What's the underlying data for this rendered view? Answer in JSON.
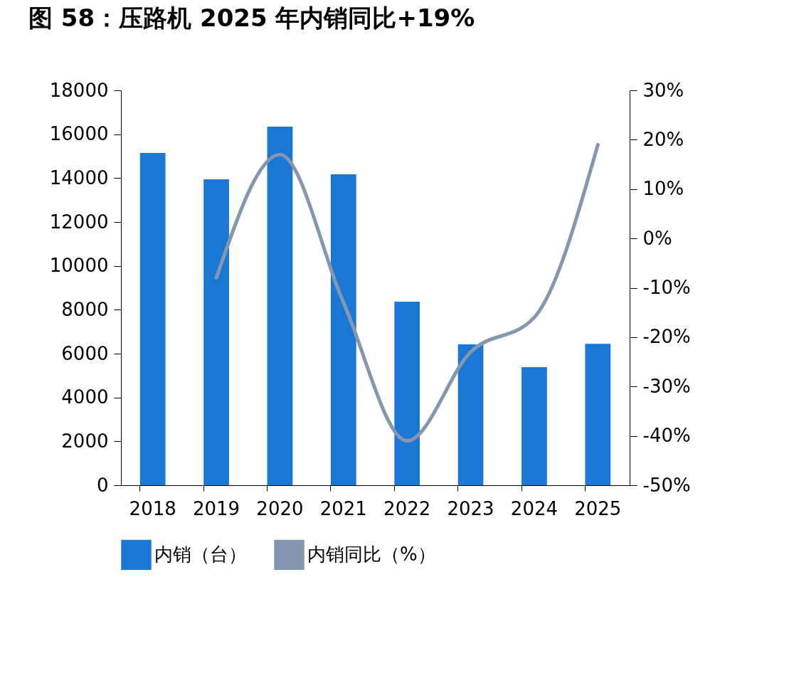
{
  "chart_data": {
    "type": "bar",
    "title": "图 58：压路机 2025 年内销同比+19%",
    "categories": [
      "2018",
      "2019",
      "2020",
      "2021",
      "2022",
      "2023",
      "2024",
      "2025"
    ],
    "series": [
      {
        "name": "内销（台）",
        "color": "#1a78d4",
        "values": [
          15150,
          13950,
          16350,
          14170,
          8370,
          6420,
          5380,
          6450
        ]
      },
      {
        "name": "内销同比（%）",
        "type": "line",
        "axis": "y2",
        "color": "#8497b0",
        "values": [
          null,
          -8,
          17,
          -13,
          -41,
          -23,
          -16,
          19
        ]
      }
    ],
    "ylim": [
      0,
      18000
    ],
    "yticks": [
      0,
      2000,
      4000,
      6000,
      8000,
      10000,
      12000,
      14000,
      16000,
      18000
    ],
    "y2lim": [
      -50,
      30
    ],
    "y2ticks": [
      {
        "value": -50,
        "label": "-50%"
      },
      {
        "value": -40,
        "label": "-40%"
      },
      {
        "value": -30,
        "label": "-30%"
      },
      {
        "value": -20,
        "label": "-20%"
      },
      {
        "value": -10,
        "label": "-10%"
      },
      {
        "value": 0,
        "label": "0%"
      },
      {
        "value": 10,
        "label": "10%"
      },
      {
        "value": 20,
        "label": "20%"
      },
      {
        "value": 30,
        "label": "30%"
      }
    ],
    "grid": false,
    "legend": "bottom",
    "marker": "none",
    "line_style": "solid"
  }
}
